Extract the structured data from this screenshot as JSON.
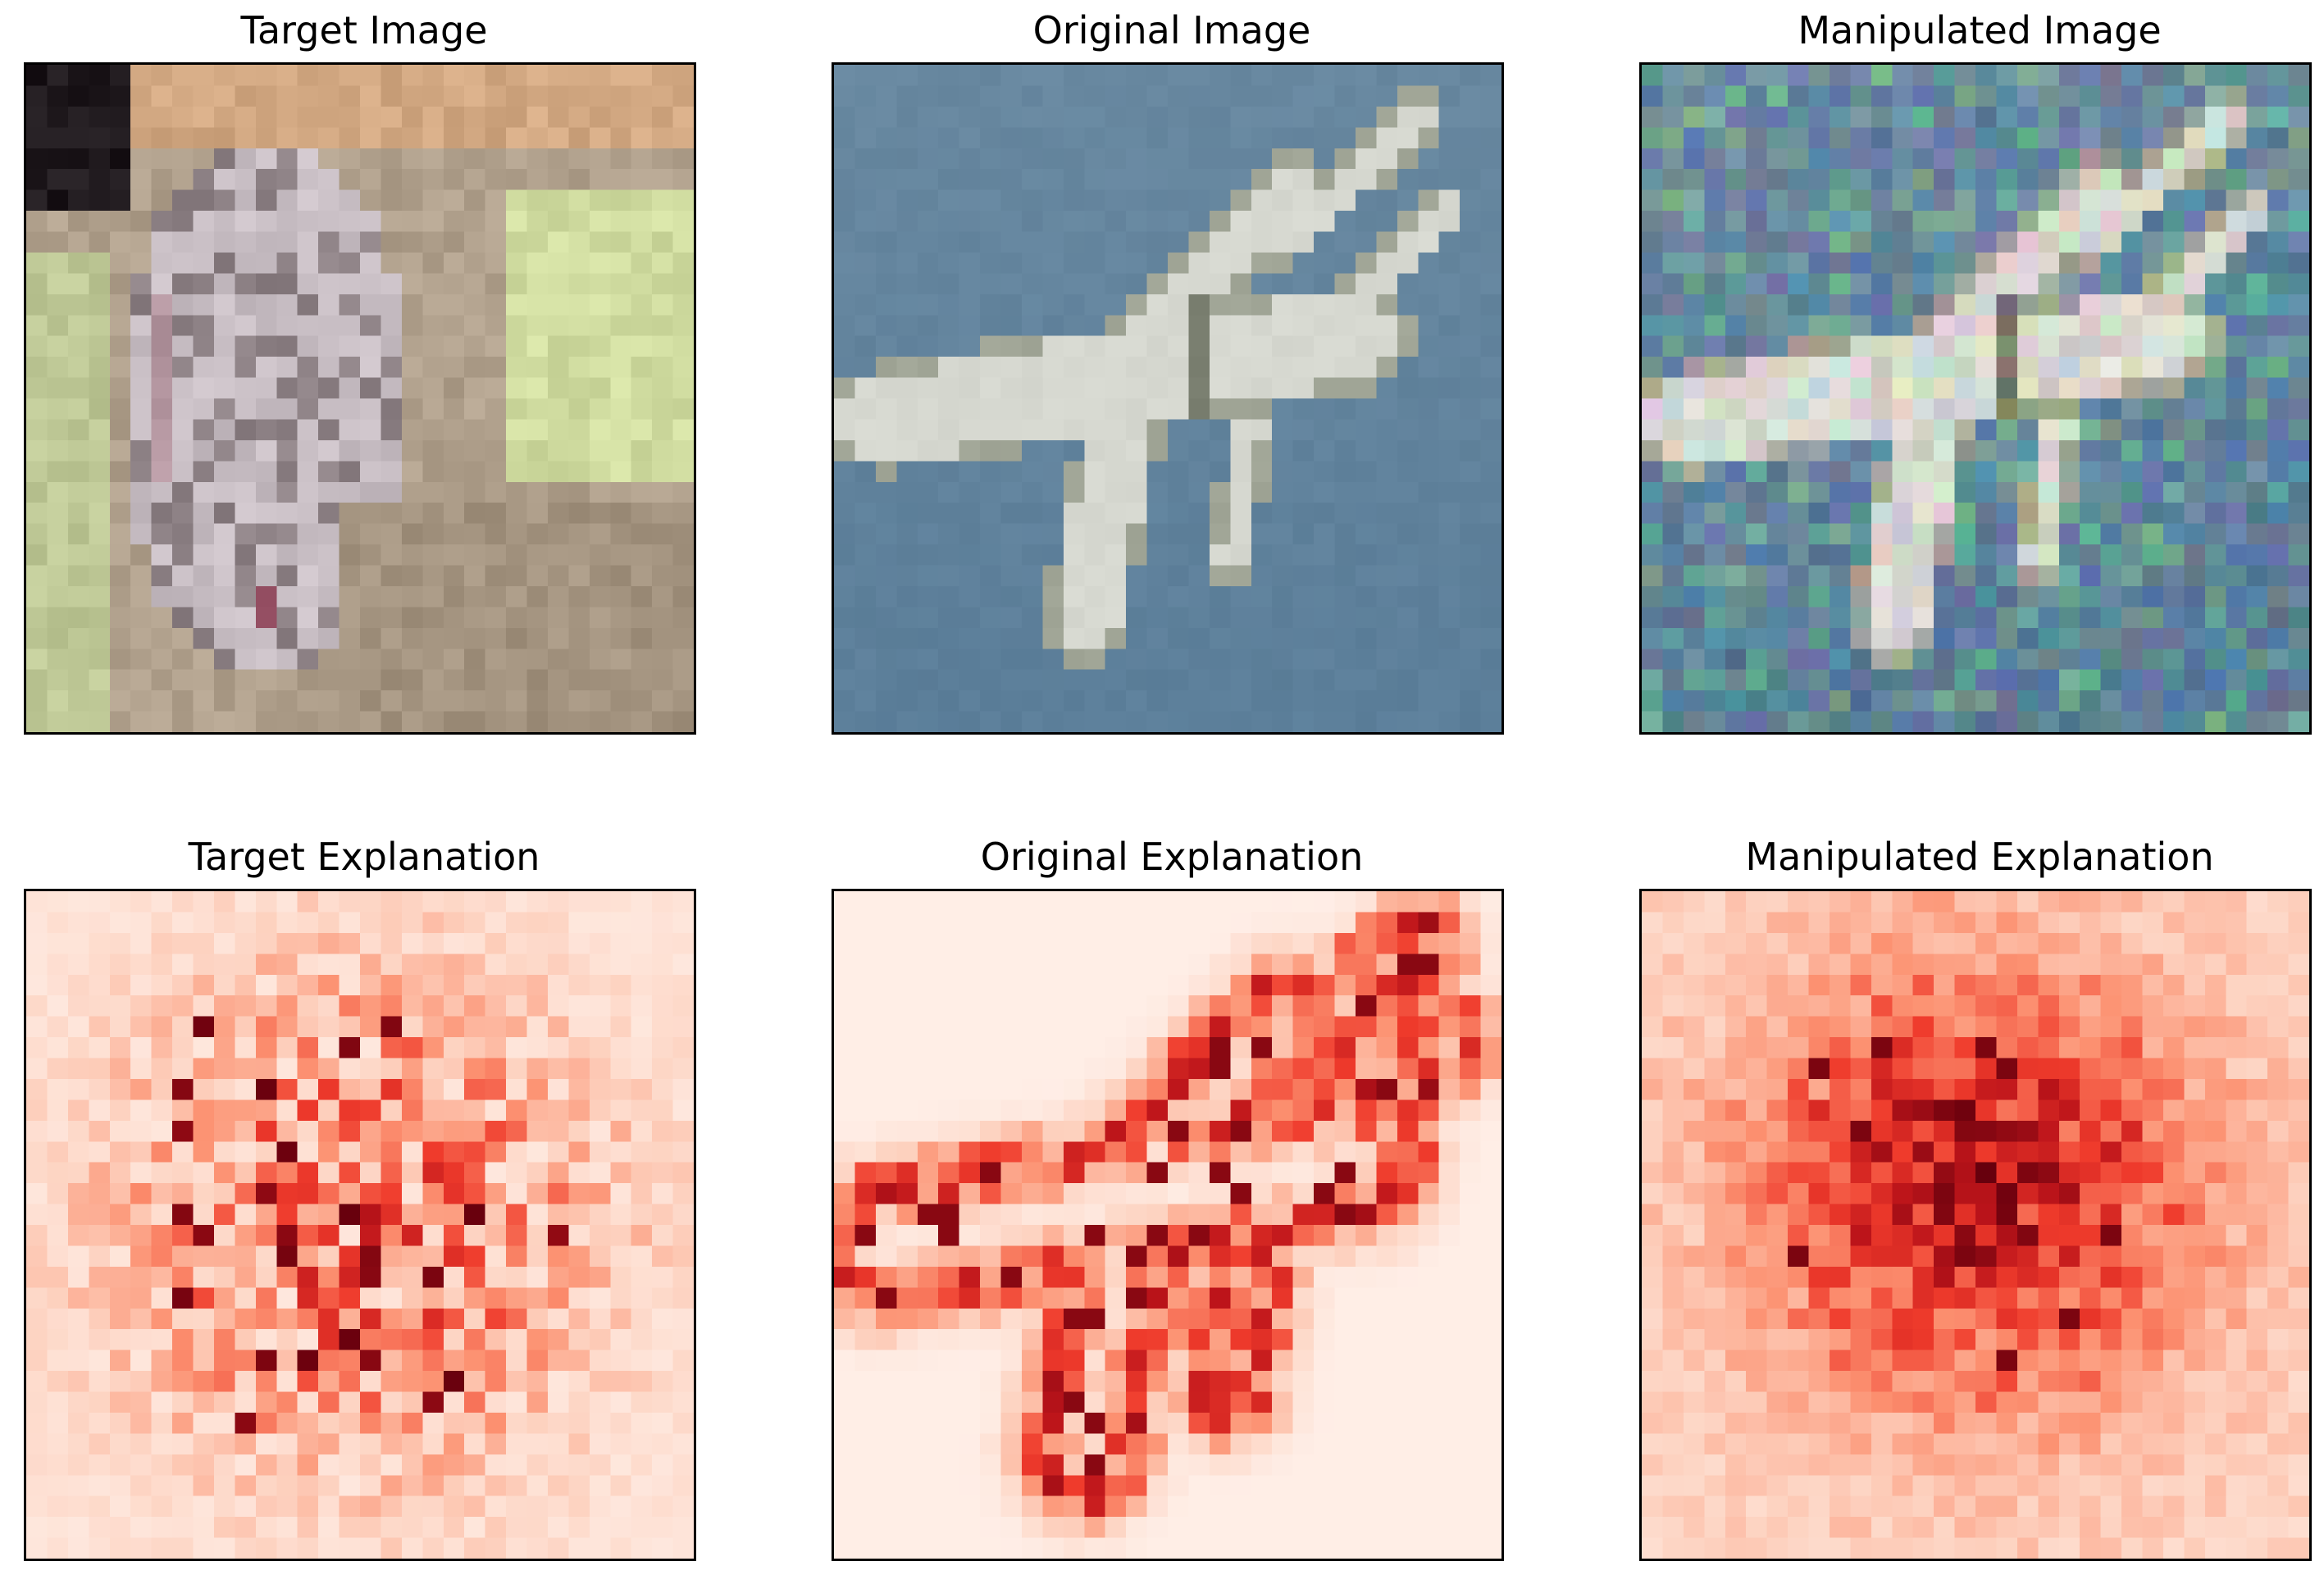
{
  "figure": {
    "panels": [
      {
        "title": "Target Image",
        "kind": "image",
        "scene": "cat"
      },
      {
        "title": "Original Image",
        "kind": "image",
        "scene": "plane"
      },
      {
        "title": "Manipulated Image",
        "kind": "image",
        "scene": "plane-noisy"
      },
      {
        "title": "Target Explanation",
        "kind": "heatmap",
        "scene": "target-expl"
      },
      {
        "title": "Original Explanation",
        "kind": "heatmap",
        "scene": "orig-expl"
      },
      {
        "title": "Manipulated Explanation",
        "kind": "heatmap",
        "scene": "manip-expl"
      }
    ],
    "colors": {
      "sky": "#6888a0",
      "plane_body": "#d6d8d0",
      "heat_low": "#fff5f0",
      "heat_high": "#67000d"
    }
  }
}
